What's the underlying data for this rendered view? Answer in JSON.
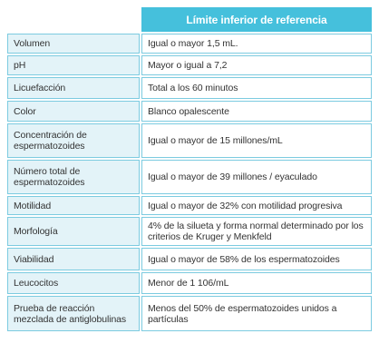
{
  "header": {
    "title": "Límite inferior de referencia"
  },
  "table": {
    "rows": [
      [
        "Volumen",
        "Igual o mayor 1,5 mL."
      ],
      [
        "pH",
        "Mayor o igual a 7,2"
      ],
      [
        "Licuefacción",
        "Total a los 60 minutos"
      ],
      [
        "Color",
        "Blanco opalescente"
      ],
      [
        "Concentración de espermatozoides",
        "Igual o mayor de 15 millones/mL"
      ],
      [
        "Número total de espermatozoides",
        "Igual o mayor de 39 millones / eyaculado"
      ],
      [
        "Motilidad",
        "Igual o mayor de 32% con motilidad progresiva"
      ],
      [
        "Morfología",
        "4% de la silueta y forma normal determinado por los criterios de Kruger y Menkfeld"
      ],
      [
        "Viabilidad",
        "Igual o mayor de 58% de los espermatozoides"
      ],
      [
        "Leucocitos",
        "Menor de 1 106/mL"
      ],
      [
        "Prueba de reacción mezclada de antiglobulinas",
        "Menos del 50% de espermatozoides unidos a partículas"
      ]
    ]
  }
}
